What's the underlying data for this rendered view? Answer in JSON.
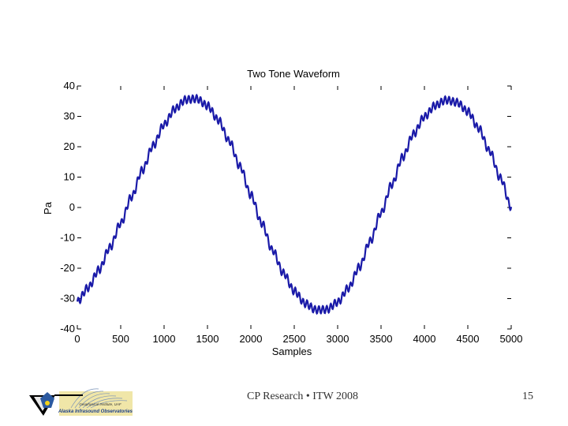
{
  "chart_data": {
    "type": "line",
    "title": "Two Tone Waveform",
    "xlabel": "Samples",
    "ylabel": "Pa",
    "xlim": [
      0,
      5000
    ],
    "ylim": [
      -40,
      40
    ],
    "xticks": [
      0,
      500,
      1000,
      1500,
      2000,
      2500,
      3000,
      3500,
      4000,
      4500,
      5000
    ],
    "yticks": [
      40,
      30,
      20,
      10,
      0,
      -10,
      -20,
      -30,
      -40
    ],
    "xtick_labels": [
      "0",
      "500",
      "1000",
      "1500",
      "2000",
      "2500",
      "3000",
      "3500",
      "4000",
      "4500",
      "5000"
    ],
    "ytick_labels": [
      "40",
      "30",
      "20",
      "10",
      "0",
      "-10",
      "-20",
      "-30",
      "-40"
    ],
    "grid": false,
    "series": [
      {
        "name": "Two Tone Waveform",
        "color": "#1a1aa8",
        "x": [
          0,
          125,
          250,
          375,
          500,
          625,
          750,
          875,
          1000,
          1125,
          1250,
          1375,
          1500,
          1625,
          1750,
          1875,
          2000,
          2125,
          2250,
          2375,
          2500,
          2625,
          2750,
          2875,
          3000,
          3125,
          3250,
          3375,
          3500,
          3625,
          3750,
          3875,
          4000,
          4125,
          4250,
          4375,
          4500,
          4625,
          4750,
          4875,
          5000
        ],
        "y": [
          -31,
          -26.4,
          -20.5,
          -13.2,
          -5.2,
          3.5,
          12.3,
          20.4,
          27.3,
          32.5,
          35.5,
          35.8,
          33.5,
          28.8,
          21.9,
          13.5,
          4.1,
          -5.2,
          -14.1,
          -21.6,
          -27.5,
          -31.6,
          -33.7,
          -33.6,
          -31.2,
          -26.5,
          -19.6,
          -11.1,
          -1.8,
          7.6,
          16.6,
          24.2,
          29.9,
          33.6,
          35.4,
          34.6,
          31.6,
          26.1,
          18.6,
          9.7,
          0.2
        ]
      }
    ],
    "ripple_amplitude": 1.2,
    "ripple_cycles": 110
  },
  "footer": {
    "center_text": "CP Research • ITW 2008",
    "page_number": "15"
  },
  "logo": {
    "line1": "Geophysical Institute, UAF",
    "line2": "Alaska Infrasound Observatories"
  }
}
